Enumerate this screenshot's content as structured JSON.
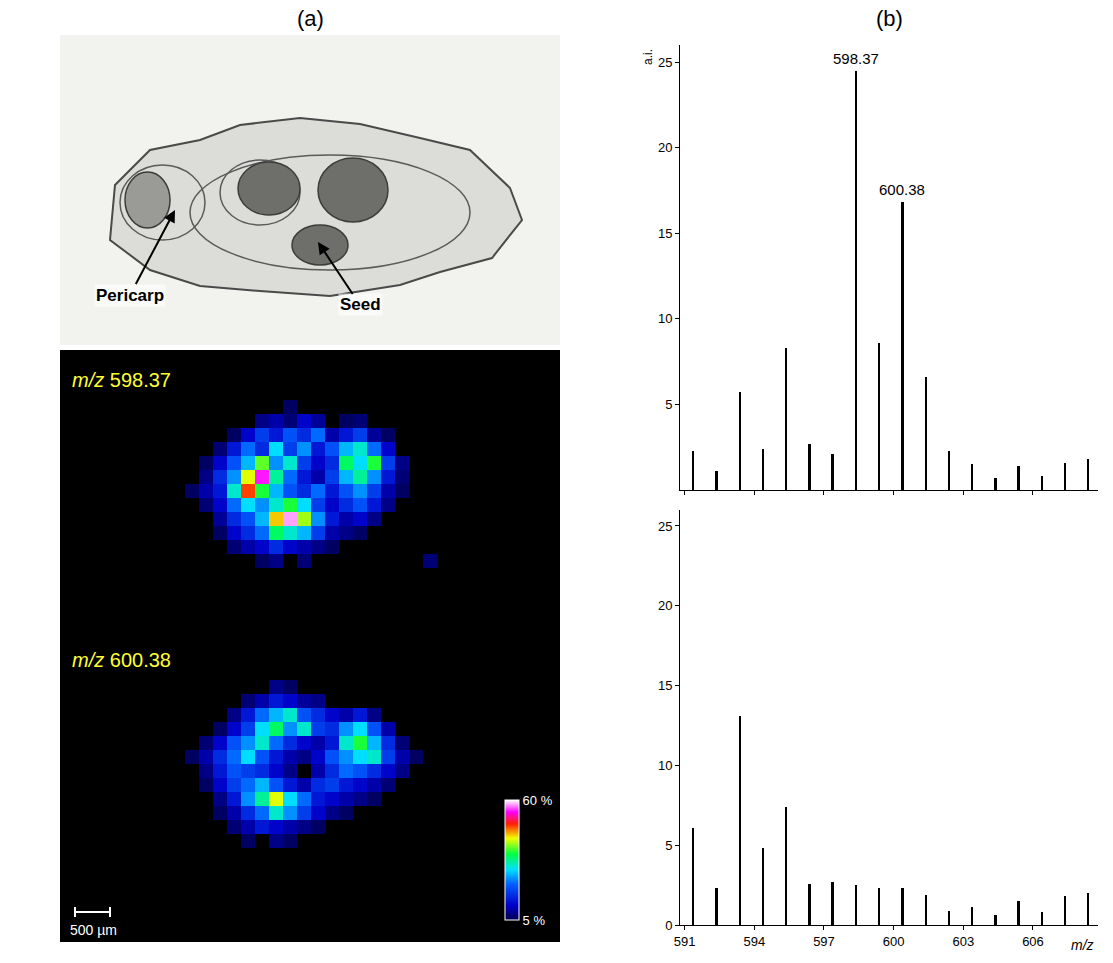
{
  "figure": {
    "panel_labels": [
      "(a)",
      "(b)"
    ]
  },
  "optical_image": {
    "labels": [
      "Pericarp",
      "Seed"
    ]
  },
  "image_panel": {
    "scale_bar": "500 µm",
    "colorbar_range": [
      5,
      60
    ],
    "colorbar_ticks": [
      {
        "value": 5,
        "label": "5 %"
      },
      {
        "value": 60,
        "label": "60 %"
      }
    ]
  },
  "chart_data": [
    {
      "type": "heatmap",
      "title": "m/z 598.37",
      "cells": [
        [
          null,
          null,
          null,
          null,
          null,
          null,
          null,
          6,
          null,
          null,
          null,
          null,
          null,
          null,
          null,
          null,
          null,
          null
        ],
        [
          null,
          null,
          null,
          null,
          null,
          8,
          10,
          7,
          12,
          9,
          null,
          6,
          7,
          null,
          null,
          null,
          null,
          null
        ],
        [
          null,
          null,
          null,
          6,
          12,
          18,
          14,
          20,
          16,
          22,
          10,
          14,
          18,
          9,
          6,
          null,
          null,
          null
        ],
        [
          null,
          null,
          7,
          14,
          22,
          16,
          28,
          18,
          24,
          14,
          20,
          26,
          30,
          22,
          12,
          null,
          null,
          null
        ],
        [
          null,
          6,
          12,
          20,
          26,
          38,
          24,
          30,
          18,
          12,
          16,
          34,
          28,
          36,
          18,
          8,
          null,
          null
        ],
        [
          null,
          8,
          16,
          24,
          42,
          55,
          32,
          22,
          14,
          10,
          18,
          26,
          32,
          24,
          14,
          7,
          null,
          null
        ],
        [
          6,
          10,
          14,
          30,
          48,
          36,
          26,
          20,
          16,
          22,
          14,
          20,
          24,
          18,
          10,
          6,
          null,
          null
        ],
        [
          null,
          7,
          12,
          22,
          28,
          24,
          30,
          36,
          28,
          18,
          12,
          16,
          20,
          14,
          8,
          null,
          null,
          null
        ],
        [
          null,
          null,
          9,
          16,
          20,
          26,
          44,
          58,
          40,
          24,
          14,
          10,
          12,
          8,
          null,
          null,
          null,
          null
        ],
        [
          null,
          null,
          6,
          12,
          16,
          22,
          34,
          30,
          26,
          18,
          10,
          8,
          6,
          null,
          null,
          null,
          null,
          null
        ],
        [
          null,
          null,
          null,
          7,
          10,
          12,
          16,
          12,
          10,
          8,
          6,
          null,
          null,
          null,
          null,
          null,
          null,
          null
        ],
        [
          null,
          null,
          null,
          null,
          null,
          6,
          8,
          null,
          7,
          null,
          null,
          null,
          null,
          null,
          null,
          null,
          null,
          7
        ]
      ]
    },
    {
      "type": "heatmap",
      "title": "m/z 600.38",
      "cells": [
        [
          null,
          null,
          null,
          null,
          null,
          null,
          8,
          6,
          null,
          null,
          null,
          null,
          null,
          null,
          null,
          null,
          null,
          null
        ],
        [
          null,
          null,
          null,
          null,
          7,
          10,
          14,
          12,
          9,
          8,
          null,
          null,
          null,
          null,
          null,
          null,
          null,
          null
        ],
        [
          null,
          null,
          null,
          8,
          14,
          22,
          26,
          30,
          20,
          16,
          12,
          10,
          14,
          8,
          null,
          null,
          null,
          null
        ],
        [
          null,
          null,
          6,
          12,
          18,
          28,
          34,
          24,
          30,
          18,
          16,
          24,
          28,
          20,
          10,
          null,
          null,
          null
        ],
        [
          null,
          7,
          12,
          20,
          24,
          30,
          22,
          16,
          12,
          10,
          14,
          30,
          36,
          26,
          16,
          7,
          null,
          null
        ],
        [
          6,
          10,
          16,
          22,
          28,
          20,
          14,
          10,
          8,
          12,
          20,
          24,
          28,
          30,
          18,
          10,
          6,
          null
        ],
        [
          null,
          8,
          14,
          20,
          18,
          16,
          12,
          8,
          null,
          10,
          16,
          22,
          20,
          16,
          12,
          8,
          null,
          null
        ],
        [
          null,
          6,
          12,
          18,
          22,
          26,
          20,
          14,
          10,
          16,
          18,
          14,
          12,
          10,
          7,
          null,
          null,
          null
        ],
        [
          null,
          null,
          8,
          14,
          24,
          32,
          42,
          28,
          22,
          14,
          12,
          10,
          8,
          6,
          null,
          null,
          null,
          null
        ],
        [
          null,
          null,
          6,
          10,
          16,
          22,
          30,
          24,
          18,
          12,
          8,
          6,
          null,
          null,
          null,
          null,
          null,
          null
        ],
        [
          null,
          null,
          null,
          7,
          10,
          14,
          12,
          10,
          8,
          6,
          null,
          null,
          null,
          null,
          null,
          null,
          null,
          null
        ],
        [
          null,
          null,
          null,
          null,
          6,
          null,
          8,
          6,
          null,
          null,
          null,
          null,
          null,
          null,
          null,
          null,
          null,
          null
        ]
      ]
    },
    {
      "type": "bar",
      "color": "#000000",
      "x": [
        591.37,
        592.37,
        593.37,
        594.37,
        595.37,
        596.37,
        597.37,
        598.37,
        599.38,
        600.38,
        601.38,
        602.38,
        603.38,
        604.38,
        605.38,
        606.38,
        607.38,
        608.38
      ],
      "values": [
        2.3,
        1.1,
        5.7,
        2.4,
        8.3,
        2.7,
        2.1,
        24.5,
        8.6,
        16.8,
        6.6,
        2.3,
        1.5,
        0.7,
        1.4,
        0.8,
        1.6,
        1.8
      ],
      "xlim": [
        590.8,
        608.8
      ],
      "xticks": [
        591,
        594,
        597,
        600,
        603,
        606
      ],
      "ylim": [
        0,
        26
      ],
      "yticks": [
        5,
        10,
        15,
        20,
        25
      ],
      "tick_labels": "y",
      "ylabel": "a.i.",
      "annotations": [
        {
          "x": 598.37,
          "text": "598.37"
        },
        {
          "x": 600.38,
          "text": "600.38"
        }
      ]
    },
    {
      "type": "bar",
      "color": "#000000",
      "x": [
        591.37,
        592.37,
        593.37,
        594.37,
        595.37,
        596.37,
        597.37,
        598.37,
        599.38,
        600.38,
        601.38,
        602.38,
        603.38,
        604.38,
        605.38,
        606.38,
        607.38,
        608.38
      ],
      "values": [
        6.1,
        2.3,
        13.1,
        4.8,
        7.4,
        2.6,
        2.7,
        2.5,
        2.3,
        2.3,
        1.9,
        0.9,
        1.1,
        0.6,
        1.5,
        0.8,
        1.8,
        2.0
      ],
      "xlim": [
        590.8,
        608.8
      ],
      "xticks": [
        591,
        594,
        597,
        600,
        603,
        606
      ],
      "ylim": [
        0,
        26
      ],
      "yticks": [
        0,
        5,
        10,
        15,
        20,
        25
      ],
      "xlabel": "m/z"
    }
  ]
}
